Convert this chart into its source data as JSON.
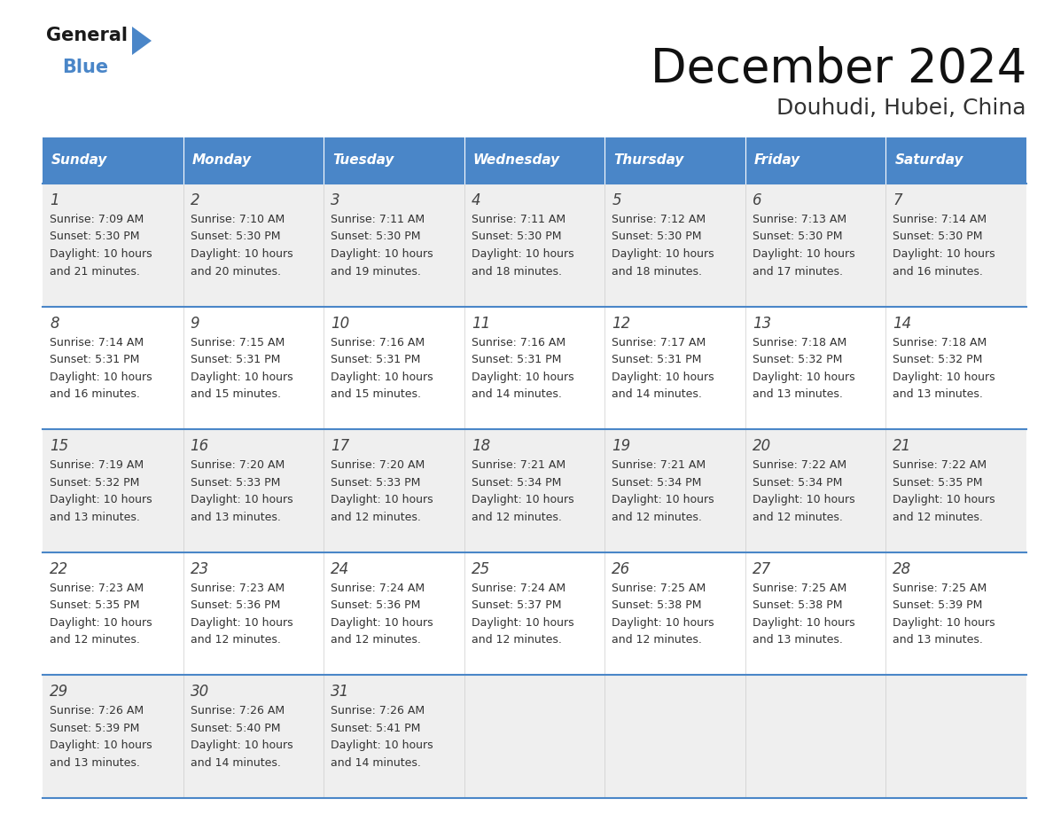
{
  "title": "December 2024",
  "subtitle": "Douhudi, Hubei, China",
  "header_color": "#4a86c8",
  "header_text_color": "#ffffff",
  "day_names": [
    "Sunday",
    "Monday",
    "Tuesday",
    "Wednesday",
    "Thursday",
    "Friday",
    "Saturday"
  ],
  "bg_color": "#ffffff",
  "row_bg_even": "#efefef",
  "row_bg_odd": "#ffffff",
  "cell_text_color": "#333333",
  "days": [
    {
      "day": 1,
      "col": 0,
      "row": 0,
      "sunrise": "7:09 AM",
      "sunset": "5:30 PM",
      "daylight": "10 hours and 21 minutes."
    },
    {
      "day": 2,
      "col": 1,
      "row": 0,
      "sunrise": "7:10 AM",
      "sunset": "5:30 PM",
      "daylight": "10 hours and 20 minutes."
    },
    {
      "day": 3,
      "col": 2,
      "row": 0,
      "sunrise": "7:11 AM",
      "sunset": "5:30 PM",
      "daylight": "10 hours and 19 minutes."
    },
    {
      "day": 4,
      "col": 3,
      "row": 0,
      "sunrise": "7:11 AM",
      "sunset": "5:30 PM",
      "daylight": "10 hours and 18 minutes."
    },
    {
      "day": 5,
      "col": 4,
      "row": 0,
      "sunrise": "7:12 AM",
      "sunset": "5:30 PM",
      "daylight": "10 hours and 18 minutes."
    },
    {
      "day": 6,
      "col": 5,
      "row": 0,
      "sunrise": "7:13 AM",
      "sunset": "5:30 PM",
      "daylight": "10 hours and 17 minutes."
    },
    {
      "day": 7,
      "col": 6,
      "row": 0,
      "sunrise": "7:14 AM",
      "sunset": "5:30 PM",
      "daylight": "10 hours and 16 minutes."
    },
    {
      "day": 8,
      "col": 0,
      "row": 1,
      "sunrise": "7:14 AM",
      "sunset": "5:31 PM",
      "daylight": "10 hours and 16 minutes."
    },
    {
      "day": 9,
      "col": 1,
      "row": 1,
      "sunrise": "7:15 AM",
      "sunset": "5:31 PM",
      "daylight": "10 hours and 15 minutes."
    },
    {
      "day": 10,
      "col": 2,
      "row": 1,
      "sunrise": "7:16 AM",
      "sunset": "5:31 PM",
      "daylight": "10 hours and 15 minutes."
    },
    {
      "day": 11,
      "col": 3,
      "row": 1,
      "sunrise": "7:16 AM",
      "sunset": "5:31 PM",
      "daylight": "10 hours and 14 minutes."
    },
    {
      "day": 12,
      "col": 4,
      "row": 1,
      "sunrise": "7:17 AM",
      "sunset": "5:31 PM",
      "daylight": "10 hours and 14 minutes."
    },
    {
      "day": 13,
      "col": 5,
      "row": 1,
      "sunrise": "7:18 AM",
      "sunset": "5:32 PM",
      "daylight": "10 hours and 13 minutes."
    },
    {
      "day": 14,
      "col": 6,
      "row": 1,
      "sunrise": "7:18 AM",
      "sunset": "5:32 PM",
      "daylight": "10 hours and 13 minutes."
    },
    {
      "day": 15,
      "col": 0,
      "row": 2,
      "sunrise": "7:19 AM",
      "sunset": "5:32 PM",
      "daylight": "10 hours and 13 minutes."
    },
    {
      "day": 16,
      "col": 1,
      "row": 2,
      "sunrise": "7:20 AM",
      "sunset": "5:33 PM",
      "daylight": "10 hours and 13 minutes."
    },
    {
      "day": 17,
      "col": 2,
      "row": 2,
      "sunrise": "7:20 AM",
      "sunset": "5:33 PM",
      "daylight": "10 hours and 12 minutes."
    },
    {
      "day": 18,
      "col": 3,
      "row": 2,
      "sunrise": "7:21 AM",
      "sunset": "5:34 PM",
      "daylight": "10 hours and 12 minutes."
    },
    {
      "day": 19,
      "col": 4,
      "row": 2,
      "sunrise": "7:21 AM",
      "sunset": "5:34 PM",
      "daylight": "10 hours and 12 minutes."
    },
    {
      "day": 20,
      "col": 5,
      "row": 2,
      "sunrise": "7:22 AM",
      "sunset": "5:34 PM",
      "daylight": "10 hours and 12 minutes."
    },
    {
      "day": 21,
      "col": 6,
      "row": 2,
      "sunrise": "7:22 AM",
      "sunset": "5:35 PM",
      "daylight": "10 hours and 12 minutes."
    },
    {
      "day": 22,
      "col": 0,
      "row": 3,
      "sunrise": "7:23 AM",
      "sunset": "5:35 PM",
      "daylight": "10 hours and 12 minutes."
    },
    {
      "day": 23,
      "col": 1,
      "row": 3,
      "sunrise": "7:23 AM",
      "sunset": "5:36 PM",
      "daylight": "10 hours and 12 minutes."
    },
    {
      "day": 24,
      "col": 2,
      "row": 3,
      "sunrise": "7:24 AM",
      "sunset": "5:36 PM",
      "daylight": "10 hours and 12 minutes."
    },
    {
      "day": 25,
      "col": 3,
      "row": 3,
      "sunrise": "7:24 AM",
      "sunset": "5:37 PM",
      "daylight": "10 hours and 12 minutes."
    },
    {
      "day": 26,
      "col": 4,
      "row": 3,
      "sunrise": "7:25 AM",
      "sunset": "5:38 PM",
      "daylight": "10 hours and 12 minutes."
    },
    {
      "day": 27,
      "col": 5,
      "row": 3,
      "sunrise": "7:25 AM",
      "sunset": "5:38 PM",
      "daylight": "10 hours and 13 minutes."
    },
    {
      "day": 28,
      "col": 6,
      "row": 3,
      "sunrise": "7:25 AM",
      "sunset": "5:39 PM",
      "daylight": "10 hours and 13 minutes."
    },
    {
      "day": 29,
      "col": 0,
      "row": 4,
      "sunrise": "7:26 AM",
      "sunset": "5:39 PM",
      "daylight": "10 hours and 13 minutes."
    },
    {
      "day": 30,
      "col": 1,
      "row": 4,
      "sunrise": "7:26 AM",
      "sunset": "5:40 PM",
      "daylight": "10 hours and 14 minutes."
    },
    {
      "day": 31,
      "col": 2,
      "row": 4,
      "sunrise": "7:26 AM",
      "sunset": "5:41 PM",
      "daylight": "10 hours and 14 minutes."
    }
  ],
  "num_rows": 5,
  "num_cols": 7,
  "title_fontsize": 38,
  "subtitle_fontsize": 18,
  "header_fontsize": 11,
  "day_num_fontsize": 12,
  "cell_fontsize": 9
}
